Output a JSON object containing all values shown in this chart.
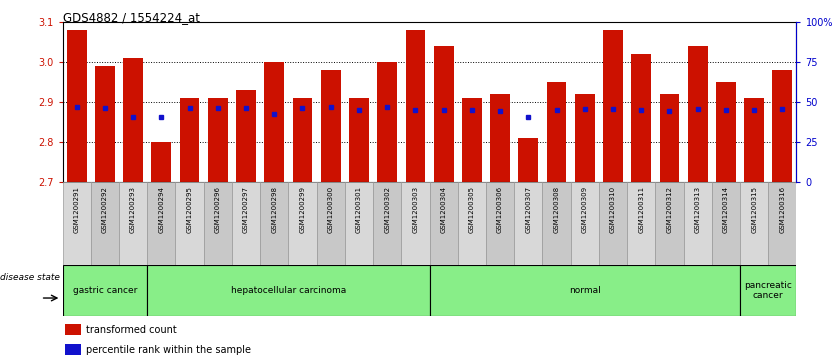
{
  "title": "GDS4882 / 1554224_at",
  "samples": [
    "GSM1200291",
    "GSM1200292",
    "GSM1200293",
    "GSM1200294",
    "GSM1200295",
    "GSM1200296",
    "GSM1200297",
    "GSM1200298",
    "GSM1200299",
    "GSM1200300",
    "GSM1200301",
    "GSM1200302",
    "GSM1200303",
    "GSM1200304",
    "GSM1200305",
    "GSM1200306",
    "GSM1200307",
    "GSM1200308",
    "GSM1200309",
    "GSM1200310",
    "GSM1200311",
    "GSM1200312",
    "GSM1200313",
    "GSM1200314",
    "GSM1200315",
    "GSM1200316"
  ],
  "bar_values": [
    3.08,
    2.99,
    3.01,
    2.8,
    2.91,
    2.91,
    2.93,
    3.0,
    2.91,
    2.98,
    2.91,
    3.0,
    3.08,
    3.04,
    2.91,
    2.92,
    2.81,
    2.95,
    2.92,
    3.08,
    3.02,
    2.92,
    3.04,
    2.95,
    2.91,
    2.98
  ],
  "percentile_values": [
    2.886,
    2.884,
    2.862,
    2.862,
    2.884,
    2.884,
    2.884,
    2.868,
    2.884,
    2.886,
    2.88,
    2.886,
    2.88,
    2.88,
    2.88,
    2.876,
    2.862,
    2.88,
    2.882,
    2.882,
    2.88,
    2.876,
    2.882,
    2.88,
    2.878,
    2.882
  ],
  "disease_groups": [
    {
      "label": "gastric cancer",
      "start": 0,
      "end": 2
    },
    {
      "label": "hepatocellular carcinoma",
      "start": 3,
      "end": 12
    },
    {
      "label": "normal",
      "start": 13,
      "end": 23
    },
    {
      "label": "pancreatic\ncancer",
      "start": 24,
      "end": 25
    }
  ],
  "ymin": 2.7,
  "ymax": 3.1,
  "bar_color": "#cc1100",
  "dot_color": "#1111cc",
  "tick_bg_even": "#d8d8d8",
  "tick_bg_odd": "#c8c8c8",
  "group_color": "#88ee88",
  "background_color": "#ffffff",
  "left_label_color": "#cc1100",
  "right_label_color": "#0000cc"
}
